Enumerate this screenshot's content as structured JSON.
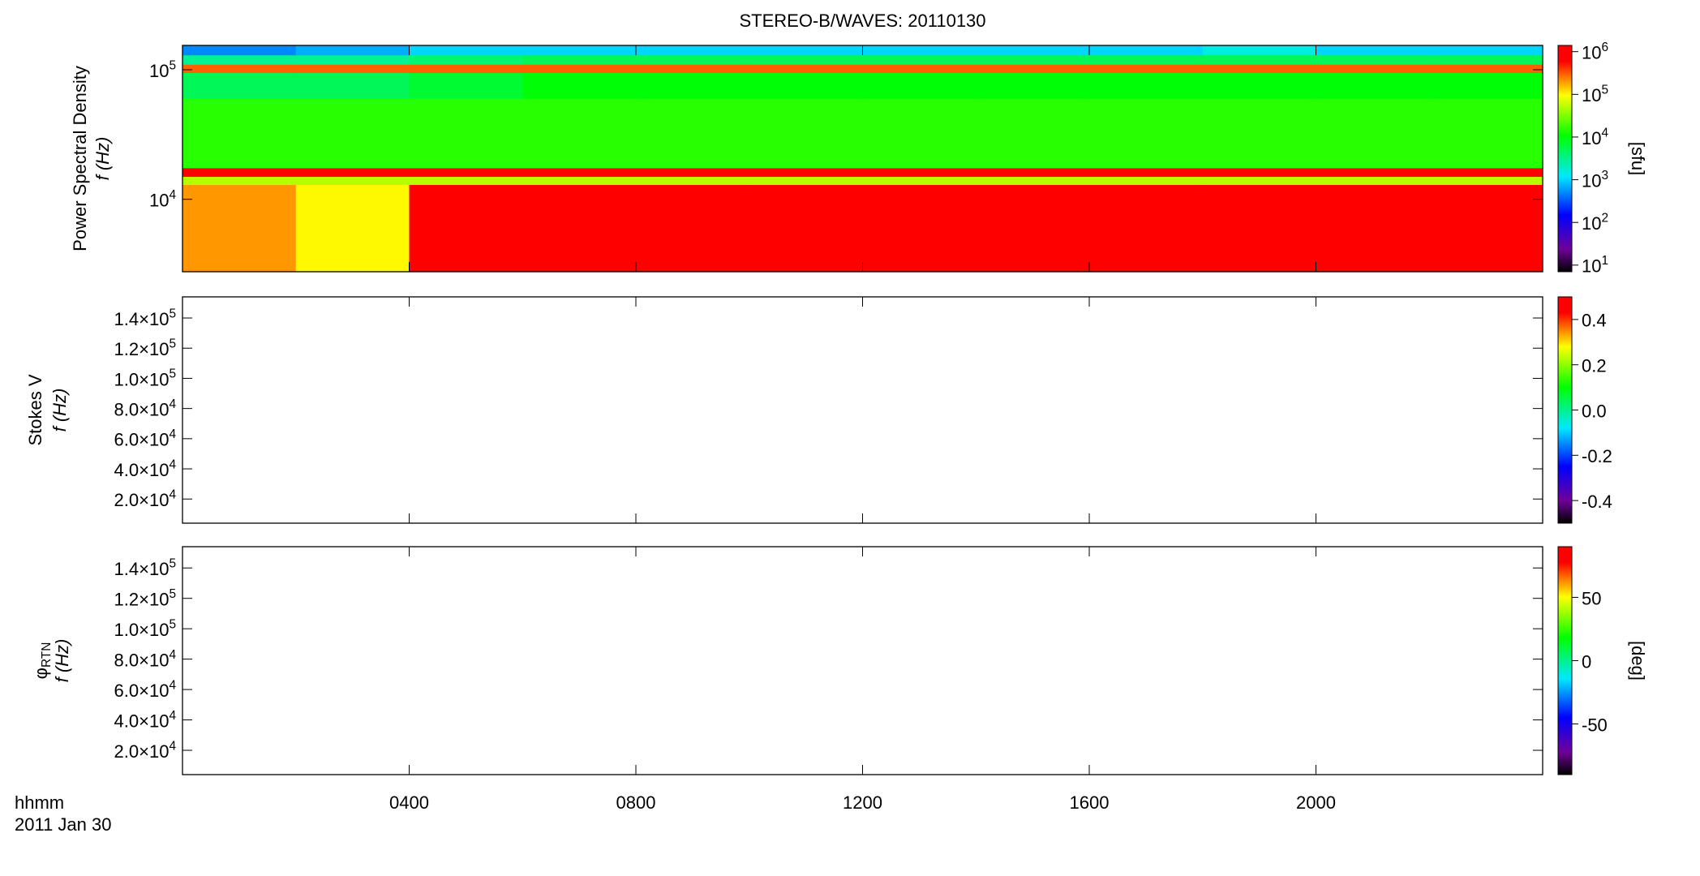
{
  "chart_data": [
    {
      "type": "heatmap",
      "title": "STEREO-B/WAVES: 20110130",
      "ylabel": "Power Spectral Density",
      "ylabel2": "f (Hz)",
      "xlim": [
        0,
        24
      ],
      "xticks": [
        4,
        8,
        12,
        16,
        20
      ],
      "ylim": [
        2760,
        154000
      ],
      "ylog": true,
      "yticks": [
        {
          "value": 10000,
          "label": "10^4"
        },
        {
          "value": 100000,
          "label": "10^5"
        }
      ],
      "x_edges": [
        0,
        2,
        4,
        6,
        8,
        10,
        12,
        14,
        16,
        18,
        20,
        22,
        24
      ],
      "y_edges": [
        2760,
        13000,
        15000,
        17500,
        60000,
        95000,
        110000,
        130000,
        154000
      ],
      "z": [
        [
          200000,
          100000,
          600000,
          1000000,
          1000000,
          1000000,
          1000000,
          1000000,
          800000,
          1000000,
          600000,
          800000
        ],
        [
          50000,
          50000,
          50000,
          50000,
          50000,
          50000,
          50000,
          50000,
          50000,
          50000,
          50000,
          50000
        ],
        [
          1000000,
          1000000,
          1000000,
          1000000,
          1000000,
          1000000,
          1000000,
          1000000,
          1000000,
          1000000,
          1000000,
          1000000
        ],
        [
          15000,
          15000,
          15000,
          15000,
          15000,
          15000,
          15000,
          15000,
          15000,
          15000,
          15000,
          15000
        ],
        [
          5000,
          5000,
          7000,
          10000,
          10000,
          10000,
          10000,
          10000,
          10000,
          10000,
          10000,
          10000
        ],
        [
          300000,
          300000,
          300000,
          300000,
          300000,
          300000,
          300000,
          300000,
          300000,
          300000,
          300000,
          300000
        ],
        [
          3000,
          3000,
          4000,
          5000,
          5000,
          5000,
          5000,
          5000,
          5000,
          5000,
          5000,
          5000
        ],
        [
          500,
          700,
          1000,
          1000,
          1000,
          1000,
          1000,
          1000,
          1000,
          1500,
          1000,
          1000
        ]
      ],
      "colormap": "rainbow",
      "clim": [
        7,
        1400000
      ],
      "clog": true,
      "clabel": "[sfu]",
      "cticks": [
        {
          "value": 10,
          "label": "10^1"
        },
        {
          "value": 100,
          "label": "10^2"
        },
        {
          "value": 1000,
          "label": "10^3"
        },
        {
          "value": 10000,
          "label": "10^4"
        },
        {
          "value": 100000,
          "label": "10^5"
        },
        {
          "value": 1000000,
          "label": "10^6"
        }
      ]
    },
    {
      "type": "heatmap",
      "ylabel": "Stokes V",
      "ylabel2": "f (Hz)",
      "xlim": [
        0,
        24
      ],
      "xticks": [
        4,
        8,
        12,
        16,
        20
      ],
      "ylim": [
        4000,
        154000
      ],
      "yticks": [
        {
          "value": 20000,
          "label": "2.0×10^4"
        },
        {
          "value": 40000,
          "label": "4.0×10^4"
        },
        {
          "value": 60000,
          "label": "6.0×10^4"
        },
        {
          "value": 80000,
          "label": "8.0×10^4"
        },
        {
          "value": 100000,
          "label": "1.0×10^5"
        },
        {
          "value": 120000,
          "label": "1.2×10^5"
        },
        {
          "value": 140000,
          "label": "1.4×10^5"
        }
      ],
      "colormap": "rainbow",
      "clim": [
        -0.5,
        0.5
      ],
      "cticks": [
        -0.4,
        -0.2,
        {
          "value": 0,
          "label": "0.0"
        },
        0.2,
        0.4
      ]
    },
    {
      "type": "heatmap",
      "ylabel": "φ_RTN",
      "ylabel2": "f (Hz)",
      "xlim": [
        0,
        24
      ],
      "xticks": [
        {
          "value": 4,
          "label": "0400"
        },
        {
          "value": 8,
          "label": "0800"
        },
        {
          "value": 12,
          "label": "1200"
        },
        {
          "value": 16,
          "label": "1600"
        },
        {
          "value": 20,
          "label": "2000"
        }
      ],
      "xlabel": "hhmm",
      "date": "2011 Jan 30",
      "ylim": [
        4000,
        154000
      ],
      "yticks": [
        {
          "value": 20000,
          "label": "2.0×10^4"
        },
        {
          "value": 40000,
          "label": "4.0×10^4"
        },
        {
          "value": 60000,
          "label": "6.0×10^4"
        },
        {
          "value": 80000,
          "label": "8.0×10^4"
        },
        {
          "value": 100000,
          "label": "1.0×10^5"
        },
        {
          "value": 120000,
          "label": "1.2×10^5"
        },
        {
          "value": 140000,
          "label": "1.4×10^5"
        }
      ],
      "colormap": "rainbow",
      "clim": [
        -90,
        90
      ],
      "clabel": "[deg]",
      "cticks": [
        -50,
        0,
        50
      ]
    }
  ]
}
